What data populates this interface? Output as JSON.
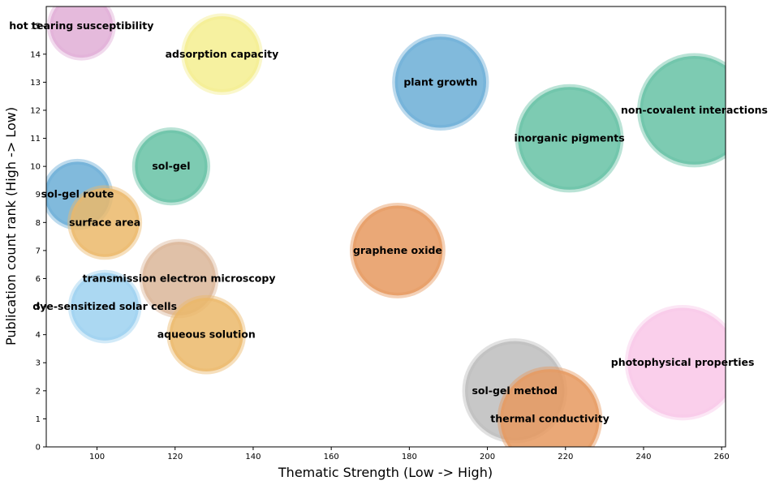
{
  "chart_data": {
    "type": "scatter",
    "title": "",
    "xlabel": "Thematic Strength (Low -> High)",
    "ylabel": "Publication count rank (High -> Low)",
    "xlim": [
      87,
      261
    ],
    "ylim": [
      0,
      15.7
    ],
    "xticks": [
      100,
      120,
      140,
      160,
      180,
      200,
      220,
      240,
      260
    ],
    "yticks": [
      0,
      1,
      2,
      3,
      4,
      5,
      6,
      7,
      8,
      9,
      10,
      11,
      12,
      13,
      14,
      15
    ],
    "grid": false,
    "points": [
      {
        "label": "hot tearing susceptibility",
        "x": 96,
        "y": 15,
        "size": 0.54,
        "color": "#e0aed6"
      },
      {
        "label": "adsorption capacity",
        "x": 132,
        "y": 14,
        "size": 0.65,
        "color": "#f4ee8f"
      },
      {
        "label": "plant growth",
        "x": 188,
        "y": 13,
        "size": 0.78,
        "color": "#6baed6"
      },
      {
        "label": "non-covalent interactions",
        "x": 253,
        "y": 12,
        "size": 0.93,
        "color": "#66c2a5"
      },
      {
        "label": "inorganic pigments",
        "x": 221,
        "y": 11,
        "size": 0.88,
        "color": "#66c2a5"
      },
      {
        "label": "sol-gel",
        "x": 119,
        "y": 10,
        "size": 0.62,
        "color": "#66c2a5"
      },
      {
        "label": "sol-gel route",
        "x": 95,
        "y": 9,
        "size": 0.56,
        "color": "#6baed6"
      },
      {
        "label": "surface area",
        "x": 102,
        "y": 8,
        "size": 0.59,
        "color": "#ebb96a"
      },
      {
        "label": "graphene oxide",
        "x": 177,
        "y": 7,
        "size": 0.77,
        "color": "#e6995f"
      },
      {
        "label": "transmission electron microscopy",
        "x": 121,
        "y": 6,
        "size": 0.63,
        "color": "#dbb699"
      },
      {
        "label": "dye-sensitized solar cells",
        "x": 102,
        "y": 5,
        "size": 0.58,
        "color": "#9cd1f0"
      },
      {
        "label": "aqueous solution",
        "x": 128,
        "y": 4,
        "size": 0.63,
        "color": "#ebb96a"
      },
      {
        "label": "photophysical properties",
        "x": 250,
        "y": 3,
        "size": 0.94,
        "color": "#f9c7e8"
      },
      {
        "label": "sol-gel method",
        "x": 207,
        "y": 2,
        "size": 0.85,
        "color": "#bdbdbd"
      },
      {
        "label": "thermal conductivity",
        "x": 216,
        "y": 1,
        "size": 0.85,
        "color": "#e6995f"
      }
    ]
  }
}
